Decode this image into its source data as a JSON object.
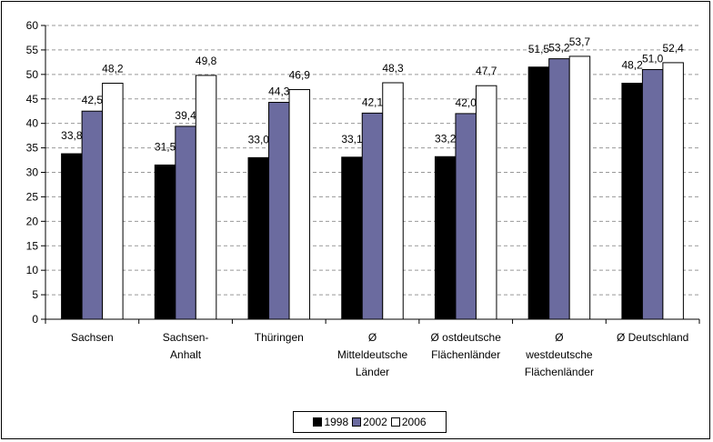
{
  "chart_data": {
    "type": "bar",
    "title": "",
    "xlabel": "",
    "ylabel": "",
    "ylim": [
      0,
      60
    ],
    "yticks": [
      0,
      5,
      10,
      15,
      20,
      25,
      30,
      35,
      40,
      45,
      50,
      55,
      60
    ],
    "grid": "horizontal dashed",
    "legend_position": "bottom",
    "categories": [
      [
        "Sachsen"
      ],
      [
        "Sachsen-",
        "Anhalt"
      ],
      [
        "Thüringen"
      ],
      [
        "Ø",
        "Mitteldeutsche",
        "Länder"
      ],
      [
        "Ø ostdeutsche",
        "Flächenländer"
      ],
      [
        "Ø",
        "westdeutsche",
        "Flächenländer"
      ],
      [
        "Ø Deutschland"
      ]
    ],
    "series": [
      {
        "name": "1998",
        "color": "#000000",
        "values": [
          33.8,
          31.5,
          33.0,
          33.1,
          33.2,
          51.5,
          48.2
        ],
        "labels": [
          "33,8",
          "31,5",
          "33,0",
          "33,1",
          "33,2",
          "51,5",
          "48,2"
        ]
      },
      {
        "name": "2002",
        "color": "#6b6b9f",
        "values": [
          42.5,
          39.4,
          44.3,
          42.1,
          42.0,
          53.2,
          51.0
        ],
        "labels": [
          "42,5",
          "39,4",
          "44,3",
          "42,1",
          "42,0",
          "53,2",
          "51,0"
        ]
      },
      {
        "name": "2006",
        "color": "#ffffff",
        "values": [
          48.2,
          49.8,
          46.9,
          48.3,
          47.7,
          53.7,
          52.4
        ],
        "labels": [
          "48,2",
          "49,8",
          "46,9",
          "48,3",
          "47,7",
          "53,7",
          "52,4"
        ]
      }
    ]
  }
}
